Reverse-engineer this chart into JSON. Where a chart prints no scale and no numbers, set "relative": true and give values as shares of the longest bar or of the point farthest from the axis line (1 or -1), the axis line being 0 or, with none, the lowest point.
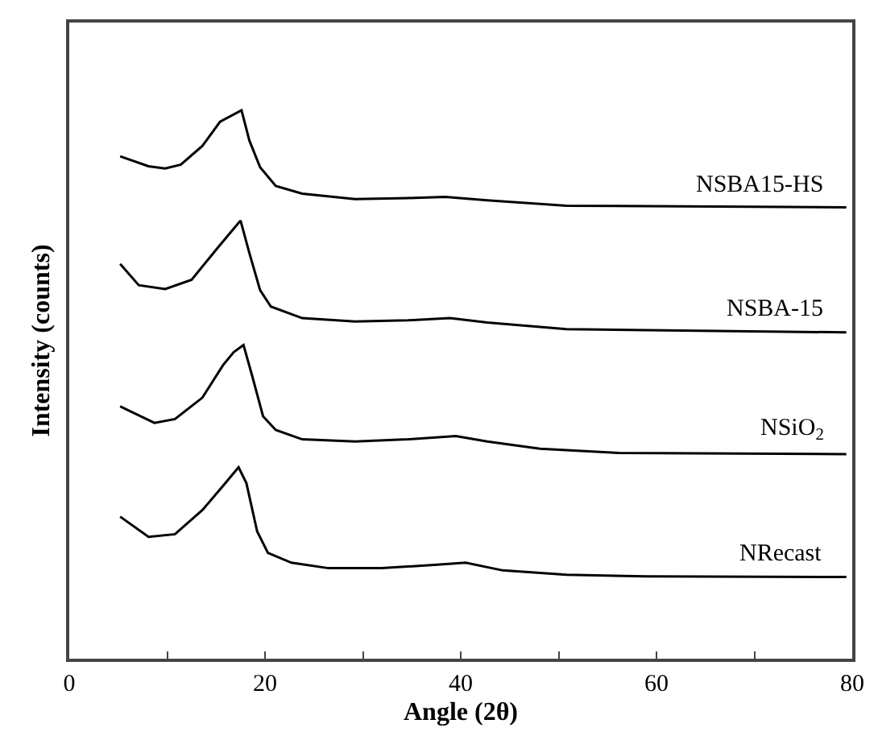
{
  "chart_data": {
    "type": "line",
    "relative": true,
    "xlabel": "Angle (2θ)",
    "ylabel": "Intensity (counts)",
    "xlim": [
      0,
      80
    ],
    "xticks": [
      0,
      {
        "value": 10,
        "label": null
      },
      20,
      {
        "value": 30,
        "label": null
      },
      40,
      {
        "value": 50,
        "label": null
      },
      60,
      {
        "value": 70,
        "label": null
      },
      80
    ],
    "legend": false,
    "marker": "none",
    "line_style": "solid",
    "series": [
      {
        "name": "NRecast",
        "color": "#000000",
        "x": [
          5.2,
          8.1,
          10.8,
          13.6,
          15.7,
          17.3,
          18.1,
          19.2,
          20.3,
          22.7,
          26.5,
          31.9,
          37.3,
          40.5,
          44.3,
          50.8,
          58.9,
          79.4
        ],
        "values": [
          0.259,
          0.222,
          0.227,
          0.271,
          0.315,
          0.349,
          0.32,
          0.232,
          0.193,
          0.175,
          0.165,
          0.165,
          0.171,
          0.175,
          0.161,
          0.153,
          0.15,
          0.149
        ]
      },
      {
        "name": "NSiO$_{2}$",
        "color": "#000000",
        "x": [
          5.2,
          8.7,
          10.8,
          13.6,
          15.7,
          16.8,
          17.8,
          18.7,
          19.8,
          21.1,
          23.8,
          29.2,
          34.6,
          39.5,
          42.7,
          48.1,
          56.2,
          79.4
        ],
        "values": [
          0.46,
          0.43,
          0.437,
          0.476,
          0.535,
          0.559,
          0.572,
          0.515,
          0.442,
          0.417,
          0.4,
          0.396,
          0.4,
          0.406,
          0.396,
          0.383,
          0.375,
          0.373
        ]
      },
      {
        "name": "NSBA-15",
        "color": "#000000",
        "x": [
          5.2,
          7.1,
          9.8,
          12.5,
          15.2,
          16.8,
          17.5,
          18.4,
          19.5,
          20.6,
          23.8,
          29.2,
          34.6,
          38.9,
          42.7,
          50.8,
          79.4
        ],
        "values": [
          0.72,
          0.681,
          0.674,
          0.691,
          0.75,
          0.784,
          0.799,
          0.74,
          0.672,
          0.642,
          0.621,
          0.615,
          0.617,
          0.621,
          0.613,
          0.601,
          0.595
        ]
      },
      {
        "name": "NSBA15-HS",
        "color": "#000000",
        "x": [
          5.2,
          8.1,
          9.8,
          11.4,
          13.6,
          15.4,
          17.6,
          18.4,
          19.5,
          21.1,
          23.8,
          29.2,
          34.6,
          38.4,
          42.7,
          50.8,
          79.4
        ],
        "values": [
          0.916,
          0.898,
          0.894,
          0.901,
          0.935,
          0.979,
          1,
          0.945,
          0.896,
          0.862,
          0.848,
          0.838,
          0.84,
          0.842,
          0.836,
          0.826,
          0.823
        ]
      }
    ]
  }
}
